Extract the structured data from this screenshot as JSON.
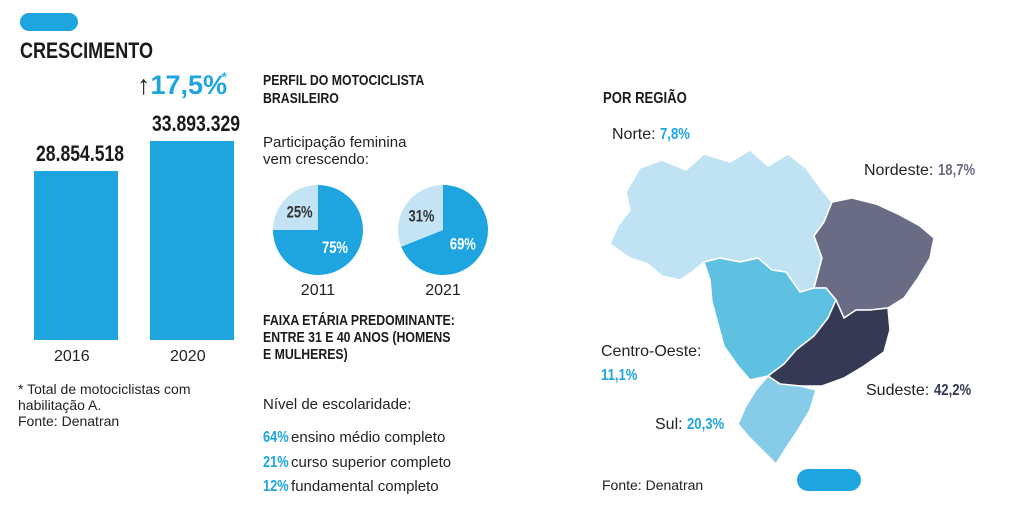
{
  "growth": {
    "title": "CRESCIMENTO",
    "increase": "17,5%",
    "increase_note_mark": "*",
    "footnote": "* Total de motociclistas com habilitação A.",
    "source": "Fonte: Denatran"
  },
  "profile": {
    "title_line1": "PERFIL DO MOTOCICLISTA",
    "title_line2": "BRASILEIRO",
    "female_line1": "Participação feminina",
    "female_line2": "vem crescendo:",
    "age_line1": "FAIXA ETÁRIA PREDOMINANTE:",
    "age_line2": "ENTRE 31 E 40 ANOS (HOMENS",
    "age_line3": "E MULHERES)",
    "education_title": "Nível de escolaridade:",
    "education": [
      {
        "pct": "64%",
        "label": "ensino médio completo"
      },
      {
        "pct": "21%",
        "label": "curso superior completo"
      },
      {
        "pct": "12%",
        "label": "fundamental completo"
      }
    ]
  },
  "regions": {
    "title": "POR REGIÃO",
    "source": "Fonte: Denatran",
    "items": {
      "norte": {
        "name": "Norte:",
        "value": "7,8%",
        "color": "#bfe3f2"
      },
      "nordeste": {
        "name": "Nordeste:",
        "value": "18,7%",
        "color": "#6a6b84"
      },
      "centro": {
        "name1": "Centro-Oeste:",
        "value": "11,1%",
        "color": "#5ec1e2"
      },
      "sudeste": {
        "name": "Sudeste:",
        "value": "42,2%",
        "color": "#363954"
      },
      "sul": {
        "name": "Sul:",
        "value": "20,3%",
        "color": "#86cbe8"
      }
    }
  },
  "chart_data": [
    {
      "type": "bar",
      "title": "CRESCIMENTO",
      "categories": [
        "2016",
        "2020"
      ],
      "values": [
        28854518,
        33893329
      ],
      "value_labels": [
        "28.854.518",
        "33.893.329"
      ],
      "color": "#1ea5e0"
    },
    {
      "type": "pie",
      "category": "2011",
      "slices": [
        {
          "label": "75%",
          "value": 75
        },
        {
          "label": "25%",
          "value": 25
        }
      ],
      "colors": [
        "#1ea5e0",
        "#c4e3f4"
      ]
    },
    {
      "type": "pie",
      "category": "2021",
      "slices": [
        {
          "label": "69%",
          "value": 69
        },
        {
          "label": "31%",
          "value": 31
        }
      ],
      "colors": [
        "#1ea5e0",
        "#c4e3f4"
      ]
    },
    {
      "type": "bar",
      "categories": [
        "Norte",
        "Nordeste",
        "Centro-Oeste",
        "Sudeste",
        "Sul"
      ],
      "values": [
        7.8,
        18.7,
        11.1,
        42.2,
        20.3
      ],
      "value_labels": [
        "7,8%",
        "18,7%",
        "11,1%",
        "42,2%",
        "20,3%"
      ]
    }
  ]
}
